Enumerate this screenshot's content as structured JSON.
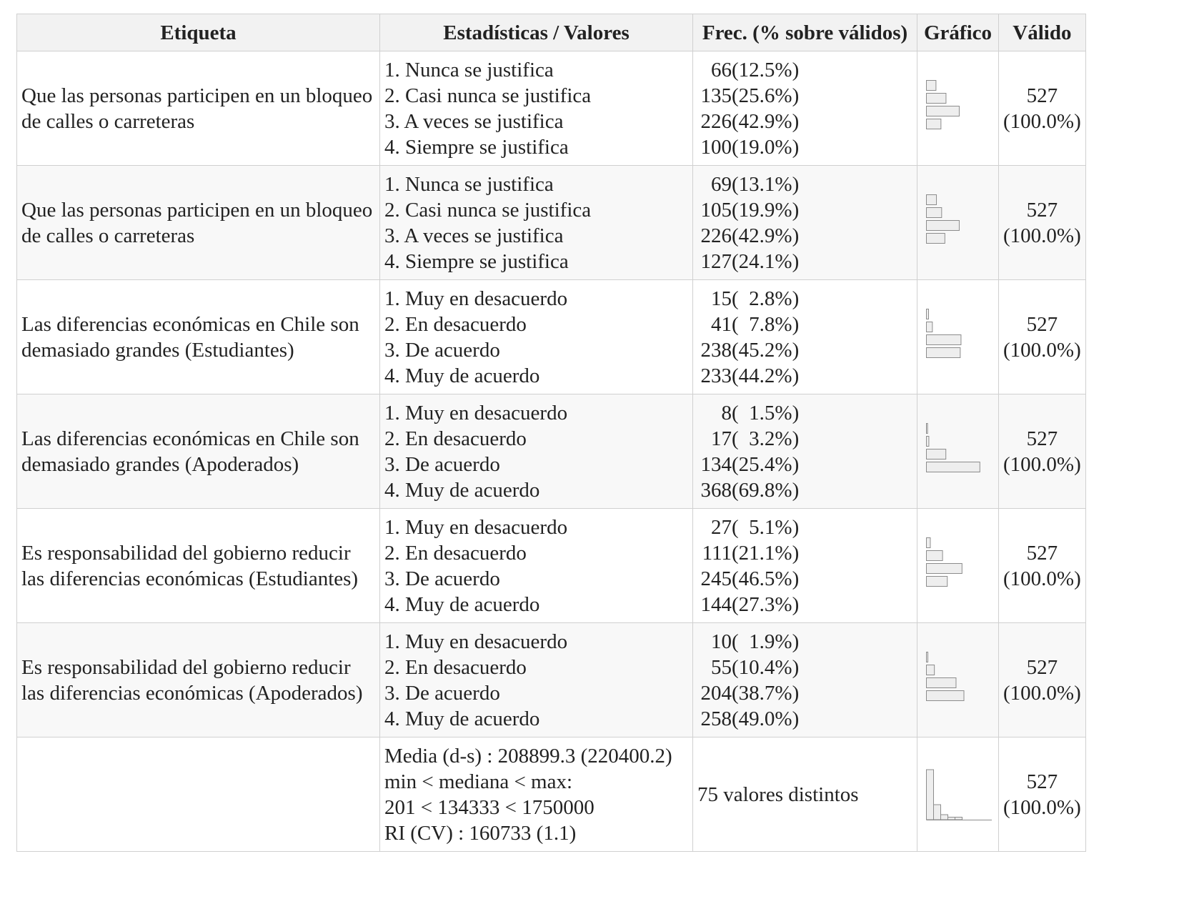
{
  "headers": {
    "label": "Etiqueta",
    "stats": "Estadísticas / Valores",
    "freq": "Frec. (% sobre válidos)",
    "graph": "Gráfico",
    "valid": "Válido"
  },
  "rows": [
    {
      "label": "Que las personas participen en un bloqueo de calles o carreteras",
      "stats": [
        "1. Nunca se justifica",
        "2. Casi nunca se justifica",
        "3. A veces se justifica",
        "4. Siempre se justifica"
      ],
      "freq": [
        {
          "count": "66",
          "pct": "(12.5%)",
          "fraction": 0.125
        },
        {
          "count": "135",
          "pct": "(25.6%)",
          "fraction": 0.256
        },
        {
          "count": "226",
          "pct": "(42.9%)",
          "fraction": 0.429
        },
        {
          "count": "100",
          "pct": "(19.0%)",
          "fraction": 0.19
        }
      ],
      "valid_n": "527",
      "valid_pct": "(100.0%)"
    },
    {
      "label": "Que las personas participen en un bloqueo de calles o carreteras",
      "stats": [
        "1. Nunca se justifica",
        "2. Casi nunca se justifica",
        "3. A veces se justifica",
        "4. Siempre se justifica"
      ],
      "freq": [
        {
          "count": "69",
          "pct": "(13.1%)",
          "fraction": 0.131
        },
        {
          "count": "105",
          "pct": "(19.9%)",
          "fraction": 0.199
        },
        {
          "count": "226",
          "pct": "(42.9%)",
          "fraction": 0.429
        },
        {
          "count": "127",
          "pct": "(24.1%)",
          "fraction": 0.241
        }
      ],
      "valid_n": "527",
      "valid_pct": "(100.0%)"
    },
    {
      "label": "Las diferencias económicas en Chile son demasiado grandes (Estudiantes)",
      "stats": [
        "1. Muy en desacuerdo",
        "2. En desacuerdo",
        "3. De acuerdo",
        "4. Muy de acuerdo"
      ],
      "freq": [
        {
          "count": "15",
          "pct": "(  2.8%)",
          "fraction": 0.028
        },
        {
          "count": "41",
          "pct": "(  7.8%)",
          "fraction": 0.078
        },
        {
          "count": "238",
          "pct": "(45.2%)",
          "fraction": 0.452
        },
        {
          "count": "233",
          "pct": "(44.2%)",
          "fraction": 0.442
        }
      ],
      "valid_n": "527",
      "valid_pct": "(100.0%)"
    },
    {
      "label": "Las diferencias económicas en Chile son demasiado grandes (Apoderados)",
      "stats": [
        "1. Muy en desacuerdo",
        "2. En desacuerdo",
        "3. De acuerdo",
        "4. Muy de acuerdo"
      ],
      "freq": [
        {
          "count": "8",
          "pct": "(  1.5%)",
          "fraction": 0.015
        },
        {
          "count": "17",
          "pct": "(  3.2%)",
          "fraction": 0.032
        },
        {
          "count": "134",
          "pct": "(25.4%)",
          "fraction": 0.254
        },
        {
          "count": "368",
          "pct": "(69.8%)",
          "fraction": 0.698
        }
      ],
      "valid_n": "527",
      "valid_pct": "(100.0%)"
    },
    {
      "label": "Es responsabilidad del gobierno reducir las diferencias económicas (Estudiantes)",
      "stats": [
        "1. Muy en desacuerdo",
        "2. En desacuerdo",
        "3. De acuerdo",
        "4. Muy de acuerdo"
      ],
      "freq": [
        {
          "count": "27",
          "pct": "(  5.1%)",
          "fraction": 0.051
        },
        {
          "count": "111",
          "pct": "(21.1%)",
          "fraction": 0.211
        },
        {
          "count": "245",
          "pct": "(46.5%)",
          "fraction": 0.465
        },
        {
          "count": "144",
          "pct": "(27.3%)",
          "fraction": 0.273
        }
      ],
      "valid_n": "527",
      "valid_pct": "(100.0%)"
    },
    {
      "label": "Es responsabilidad del gobierno reducir las diferencias económicas (Apoderados)",
      "stats": [
        "1. Muy en desacuerdo",
        "2. En desacuerdo",
        "3. De acuerdo",
        "4. Muy de acuerdo"
      ],
      "freq": [
        {
          "count": "10",
          "pct": "(  1.9%)",
          "fraction": 0.019
        },
        {
          "count": "55",
          "pct": "(10.4%)",
          "fraction": 0.104
        },
        {
          "count": "204",
          "pct": "(38.7%)",
          "fraction": 0.387
        },
        {
          "count": "258",
          "pct": "(49.0%)",
          "fraction": 0.49
        }
      ],
      "valid_n": "527",
      "valid_pct": "(100.0%)"
    }
  ],
  "numeric_row": {
    "label": "",
    "stats": [
      "Media (d-s) : 208899.3 (220400.2)",
      "min < mediana < max:",
      "201 < 134333 < 1750000",
      "RI (CV) : 160733 (1.1)"
    ],
    "freq_text": "75 valores distintos",
    "histogram_relative_heights": [
      1.0,
      0.3,
      0.1,
      0.05,
      0.05
    ],
    "valid_n": "527",
    "valid_pct": "(100.0%)"
  }
}
